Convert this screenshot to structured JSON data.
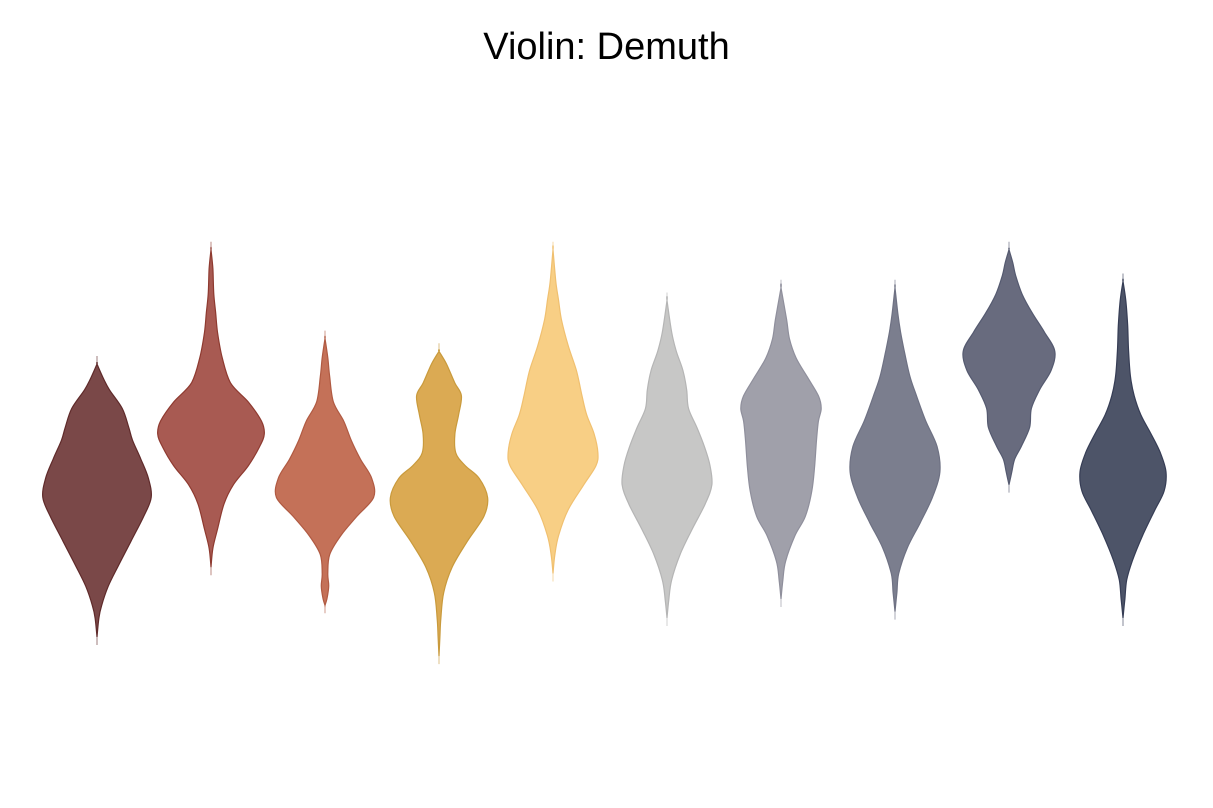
{
  "chart_data": {
    "type": "violin",
    "title": "Violin: Demuth",
    "xlabel": "",
    "ylabel": "",
    "grid": false,
    "axes_visible": false,
    "ylim": [
      0,
      1
    ],
    "violins": [
      {
        "color": "#5f2a2a",
        "fill": "#7a4848",
        "tmin": 0.17,
        "tmax": 0.6,
        "profile": [
          [
            0.17,
            0
          ],
          [
            0.2,
            0.02
          ],
          [
            0.22,
            0.05
          ],
          [
            0.25,
            0.12
          ],
          [
            0.28,
            0.22
          ],
          [
            0.32,
            0.36
          ],
          [
            0.36,
            0.5
          ],
          [
            0.39,
            0.58
          ],
          [
            0.42,
            0.55
          ],
          [
            0.45,
            0.47
          ],
          [
            0.48,
            0.38
          ],
          [
            0.5,
            0.34
          ],
          [
            0.53,
            0.27
          ],
          [
            0.56,
            0.13
          ],
          [
            0.58,
            0.06
          ],
          [
            0.6,
            0
          ]
        ]
      },
      {
        "color": "#8e3a30",
        "fill": "#a85a52",
        "tmin": 0.28,
        "tmax": 0.78,
        "profile": [
          [
            0.28,
            0
          ],
          [
            0.31,
            0.02
          ],
          [
            0.34,
            0.07
          ],
          [
            0.38,
            0.14
          ],
          [
            0.41,
            0.24
          ],
          [
            0.44,
            0.4
          ],
          [
            0.47,
            0.52
          ],
          [
            0.49,
            0.57
          ],
          [
            0.51,
            0.54
          ],
          [
            0.54,
            0.4
          ],
          [
            0.57,
            0.21
          ],
          [
            0.61,
            0.12
          ],
          [
            0.65,
            0.07
          ],
          [
            0.68,
            0.05
          ],
          [
            0.71,
            0.03
          ],
          [
            0.75,
            0.02
          ],
          [
            0.78,
            0
          ]
        ]
      },
      {
        "color": "#b05a42",
        "fill": "#c47158",
        "tmin": 0.22,
        "tmax": 0.64,
        "profile": [
          [
            0.22,
            0
          ],
          [
            0.23,
            0.02
          ],
          [
            0.25,
            0.04
          ],
          [
            0.27,
            0.03
          ],
          [
            0.3,
            0.05
          ],
          [
            0.33,
            0.17
          ],
          [
            0.36,
            0.34
          ],
          [
            0.39,
            0.52
          ],
          [
            0.42,
            0.5
          ],
          [
            0.45,
            0.38
          ],
          [
            0.48,
            0.28
          ],
          [
            0.51,
            0.2
          ],
          [
            0.54,
            0.09
          ],
          [
            0.58,
            0.05
          ],
          [
            0.61,
            0.03
          ],
          [
            0.64,
            0
          ]
        ]
      },
      {
        "color": "#c99a3c",
        "fill": "#dbaa53",
        "tmin": 0.14,
        "tmax": 0.62,
        "profile": [
          [
            0.14,
            0
          ],
          [
            0.17,
            0.01
          ],
          [
            0.2,
            0.02
          ],
          [
            0.24,
            0.05
          ],
          [
            0.28,
            0.14
          ],
          [
            0.32,
            0.3
          ],
          [
            0.36,
            0.48
          ],
          [
            0.39,
            0.52
          ],
          [
            0.42,
            0.43
          ],
          [
            0.44,
            0.28
          ],
          [
            0.46,
            0.18
          ],
          [
            0.49,
            0.17
          ],
          [
            0.52,
            0.21
          ],
          [
            0.55,
            0.24
          ],
          [
            0.57,
            0.17
          ],
          [
            0.6,
            0.08
          ],
          [
            0.62,
            0
          ]
        ]
      },
      {
        "color": "#f0c070",
        "fill": "#f8cf85",
        "tmin": 0.27,
        "tmax": 0.78,
        "profile": [
          [
            0.27,
            0
          ],
          [
            0.3,
            0.02
          ],
          [
            0.33,
            0.06
          ],
          [
            0.37,
            0.16
          ],
          [
            0.41,
            0.33
          ],
          [
            0.44,
            0.46
          ],
          [
            0.46,
            0.48
          ],
          [
            0.49,
            0.44
          ],
          [
            0.52,
            0.36
          ],
          [
            0.55,
            0.31
          ],
          [
            0.59,
            0.25
          ],
          [
            0.63,
            0.16
          ],
          [
            0.67,
            0.09
          ],
          [
            0.7,
            0.06
          ],
          [
            0.73,
            0.03
          ],
          [
            0.78,
            0
          ]
        ]
      },
      {
        "color": "#b5b5b5",
        "fill": "#c7c7c6",
        "tmin": 0.2,
        "tmax": 0.7,
        "profile": [
          [
            0.2,
            0
          ],
          [
            0.23,
            0.02
          ],
          [
            0.26,
            0.05
          ],
          [
            0.3,
            0.14
          ],
          [
            0.34,
            0.27
          ],
          [
            0.38,
            0.41
          ],
          [
            0.41,
            0.48
          ],
          [
            0.44,
            0.46
          ],
          [
            0.47,
            0.4
          ],
          [
            0.5,
            0.32
          ],
          [
            0.53,
            0.23
          ],
          [
            0.56,
            0.21
          ],
          [
            0.59,
            0.17
          ],
          [
            0.62,
            0.1
          ],
          [
            0.65,
            0.05
          ],
          [
            0.7,
            0
          ]
        ]
      },
      {
        "color": "#8f8f9c",
        "fill": "#a0a0aa",
        "tmin": 0.23,
        "tmax": 0.72,
        "profile": [
          [
            0.23,
            0
          ],
          [
            0.26,
            0.02
          ],
          [
            0.29,
            0.05
          ],
          [
            0.33,
            0.15
          ],
          [
            0.36,
            0.26
          ],
          [
            0.4,
            0.33
          ],
          [
            0.44,
            0.36
          ],
          [
            0.48,
            0.38
          ],
          [
            0.51,
            0.4
          ],
          [
            0.53,
            0.43
          ],
          [
            0.55,
            0.4
          ],
          [
            0.58,
            0.28
          ],
          [
            0.61,
            0.16
          ],
          [
            0.64,
            0.09
          ],
          [
            0.67,
            0.06
          ],
          [
            0.72,
            0
          ]
        ]
      },
      {
        "color": "#6e7183",
        "fill": "#7b7e8e",
        "tmin": 0.21,
        "tmax": 0.72,
        "profile": [
          [
            0.21,
            0
          ],
          [
            0.24,
            0.02
          ],
          [
            0.27,
            0.04
          ],
          [
            0.31,
            0.13
          ],
          [
            0.35,
            0.27
          ],
          [
            0.39,
            0.4
          ],
          [
            0.43,
            0.48
          ],
          [
            0.47,
            0.45
          ],
          [
            0.51,
            0.33
          ],
          [
            0.55,
            0.23
          ],
          [
            0.58,
            0.16
          ],
          [
            0.62,
            0.1
          ],
          [
            0.65,
            0.06
          ],
          [
            0.68,
            0.03
          ],
          [
            0.72,
            0
          ]
        ]
      },
      {
        "color": "#555a70",
        "fill": "#686b7e",
        "tmin": 0.41,
        "tmax": 0.78,
        "profile": [
          [
            0.41,
            0
          ],
          [
            0.43,
            0.03
          ],
          [
            0.45,
            0.06
          ],
          [
            0.47,
            0.13
          ],
          [
            0.5,
            0.22
          ],
          [
            0.53,
            0.24
          ],
          [
            0.56,
            0.33
          ],
          [
            0.59,
            0.45
          ],
          [
            0.62,
            0.49
          ],
          [
            0.65,
            0.38
          ],
          [
            0.68,
            0.25
          ],
          [
            0.71,
            0.14
          ],
          [
            0.74,
            0.07
          ],
          [
            0.76,
            0.04
          ],
          [
            0.78,
            0
          ]
        ]
      },
      {
        "color": "#363d55",
        "fill": "#4d5468",
        "tmin": 0.2,
        "tmax": 0.73,
        "profile": [
          [
            0.2,
            0
          ],
          [
            0.23,
            0.02
          ],
          [
            0.26,
            0.04
          ],
          [
            0.29,
            0.1
          ],
          [
            0.33,
            0.21
          ],
          [
            0.37,
            0.34
          ],
          [
            0.4,
            0.44
          ],
          [
            0.43,
            0.46
          ],
          [
            0.46,
            0.4
          ],
          [
            0.49,
            0.3
          ],
          [
            0.52,
            0.19
          ],
          [
            0.55,
            0.12
          ],
          [
            0.58,
            0.08
          ],
          [
            0.62,
            0.06
          ],
          [
            0.66,
            0.05
          ],
          [
            0.7,
            0.03
          ],
          [
            0.73,
            0
          ]
        ]
      }
    ]
  }
}
